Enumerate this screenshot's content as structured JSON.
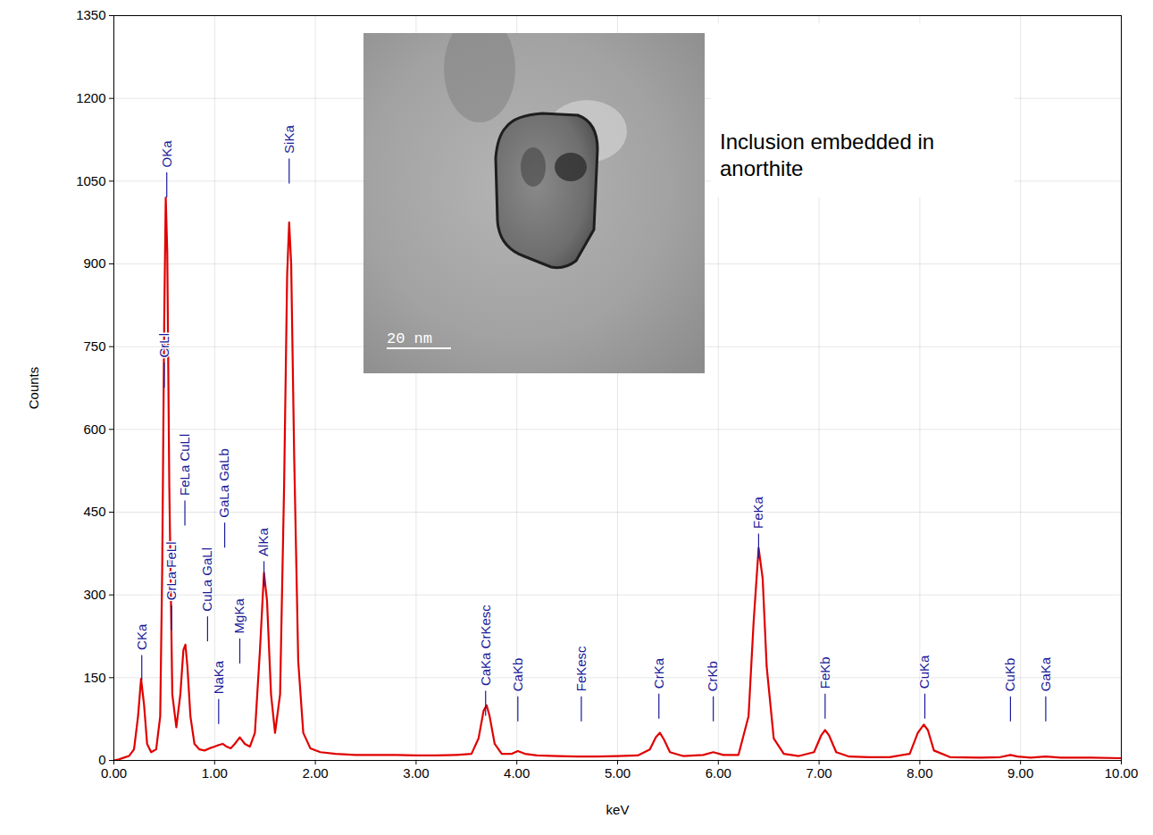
{
  "chart_data": {
    "type": "line",
    "xlabel": "keV",
    "ylabel": "Counts",
    "xlim": [
      0,
      10
    ],
    "ylim": [
      0,
      1350
    ],
    "xticks": [
      {
        "value": 0,
        "label": "0.00"
      },
      {
        "value": 1,
        "label": "1.00"
      },
      {
        "value": 2,
        "label": "2.00"
      },
      {
        "value": 3,
        "label": "3.00"
      },
      {
        "value": 4,
        "label": "4.00"
      },
      {
        "value": 5,
        "label": "5.00"
      },
      {
        "value": 6,
        "label": "6.00"
      },
      {
        "value": 7,
        "label": "7.00"
      },
      {
        "value": 8,
        "label": "8.00"
      },
      {
        "value": 9,
        "label": "9.00"
      },
      {
        "value": 10,
        "label": "10.00"
      }
    ],
    "yticks": [
      0,
      150,
      300,
      450,
      600,
      750,
      900,
      1050,
      1200,
      1350
    ],
    "grid": true,
    "color": "#e00000",
    "x": [
      0.0,
      0.05,
      0.1,
      0.15,
      0.2,
      0.24,
      0.27,
      0.3,
      0.33,
      0.37,
      0.42,
      0.46,
      0.48,
      0.5,
      0.515,
      0.53,
      0.55,
      0.58,
      0.62,
      0.66,
      0.69,
      0.71,
      0.73,
      0.76,
      0.8,
      0.85,
      0.9,
      0.95,
      1.0,
      1.04,
      1.08,
      1.12,
      1.16,
      1.2,
      1.25,
      1.3,
      1.35,
      1.4,
      1.45,
      1.49,
      1.52,
      1.56,
      1.6,
      1.65,
      1.69,
      1.72,
      1.74,
      1.76,
      1.79,
      1.83,
      1.88,
      1.95,
      2.05,
      2.2,
      2.4,
      2.6,
      2.8,
      3.0,
      3.2,
      3.4,
      3.55,
      3.62,
      3.67,
      3.7,
      3.73,
      3.78,
      3.85,
      3.95,
      4.01,
      4.08,
      4.2,
      4.4,
      4.6,
      4.8,
      5.0,
      5.2,
      5.32,
      5.38,
      5.42,
      5.46,
      5.52,
      5.65,
      5.85,
      5.95,
      6.05,
      6.2,
      6.3,
      6.35,
      6.4,
      6.44,
      6.48,
      6.55,
      6.65,
      6.8,
      6.95,
      7.02,
      7.06,
      7.1,
      7.17,
      7.3,
      7.5,
      7.7,
      7.9,
      7.98,
      8.04,
      8.08,
      8.14,
      8.3,
      8.6,
      8.8,
      8.9,
      8.97,
      9.1,
      9.25,
      9.4,
      9.7,
      10.0
    ],
    "values": [
      0,
      2,
      5,
      8,
      20,
      80,
      148,
      100,
      30,
      15,
      20,
      80,
      350,
      800,
      1020,
      920,
      500,
      120,
      60,
      120,
      200,
      210,
      170,
      80,
      30,
      20,
      18,
      22,
      25,
      28,
      30,
      25,
      22,
      30,
      42,
      30,
      25,
      50,
      200,
      340,
      290,
      120,
      50,
      120,
      500,
      880,
      975,
      900,
      550,
      180,
      50,
      22,
      15,
      12,
      10,
      10,
      10,
      9,
      9,
      10,
      12,
      40,
      90,
      100,
      80,
      30,
      12,
      12,
      17,
      12,
      9,
      8,
      7,
      7,
      8,
      9,
      20,
      42,
      50,
      38,
      15,
      8,
      10,
      15,
      10,
      10,
      80,
      250,
      385,
      330,
      170,
      40,
      12,
      8,
      15,
      45,
      55,
      45,
      15,
      7,
      6,
      6,
      12,
      50,
      65,
      55,
      18,
      6,
      5,
      6,
      10,
      7,
      5,
      7,
      5,
      5,
      4
    ],
    "peak_labels": [
      {
        "label": "CKa",
        "x": 0.277,
        "y": 200
      },
      {
        "label": "OKa",
        "x": 0.525,
        "y": 1075
      },
      {
        "label": "CrLl",
        "x": 0.5,
        "y": 730
      },
      {
        "label": "CrLa FeLl",
        "x": 0.573,
        "y": 290
      },
      {
        "label": "FeLa CuLl",
        "x": 0.705,
        "y": 480
      },
      {
        "label": "CuLa GaLl",
        "x": 0.93,
        "y": 270
      },
      {
        "label": "NaKa",
        "x": 1.04,
        "y": 120
      },
      {
        "label": "GaLa GaLb",
        "x": 1.1,
        "y": 440
      },
      {
        "label": "MgKa",
        "x": 1.25,
        "y": 230
      },
      {
        "label": "AlKa",
        "x": 1.49,
        "y": 370
      },
      {
        "label": "SiKa",
        "x": 1.74,
        "y": 1100
      },
      {
        "label": "CaKa CrKesc",
        "x": 3.69,
        "y": 135
      },
      {
        "label": "CaKb",
        "x": 4.01,
        "y": 125
      },
      {
        "label": "FeKesc",
        "x": 4.64,
        "y": 125
      },
      {
        "label": "CrKa",
        "x": 5.41,
        "y": 130
      },
      {
        "label": "CrKb",
        "x": 5.95,
        "y": 125
      },
      {
        "label": "FeKa",
        "x": 6.4,
        "y": 420
      },
      {
        "label": "FeKb",
        "x": 7.06,
        "y": 130
      },
      {
        "label": "CuKa",
        "x": 8.05,
        "y": 130
      },
      {
        "label": "CuKb",
        "x": 8.9,
        "y": 125
      },
      {
        "label": "GaKa",
        "x": 9.25,
        "y": 125
      }
    ],
    "inset_text": "Inclusion embedded in anorthite",
    "scale_bar_label": "20 nm"
  }
}
